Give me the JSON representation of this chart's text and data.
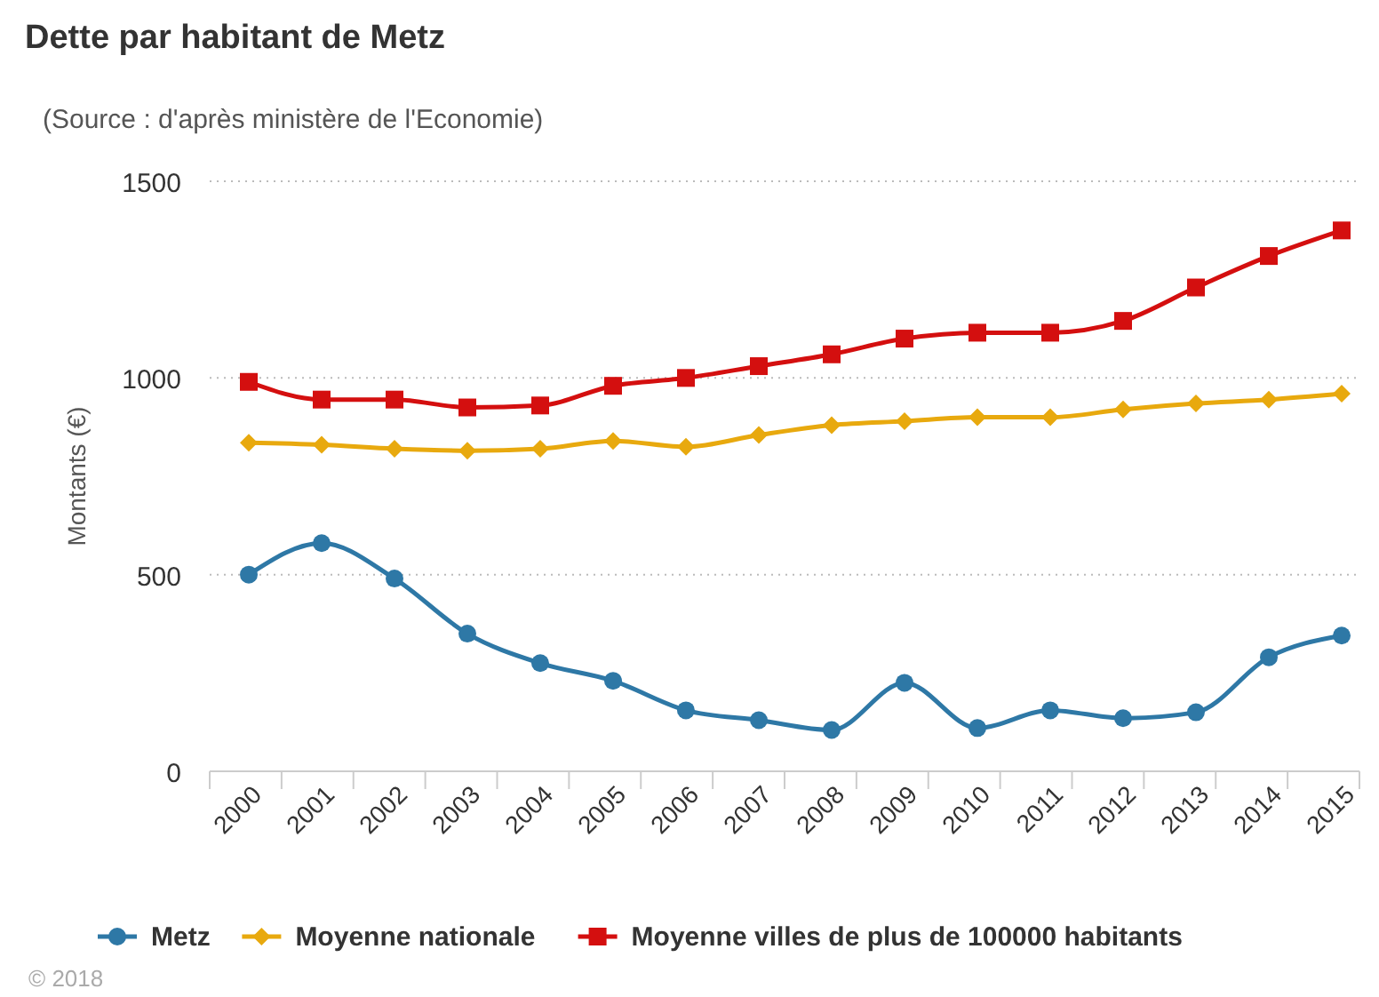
{
  "chart_data": {
    "type": "line",
    "title": "Dette par habitant de Metz",
    "subtitle": "(Source : d'après ministère de l'Economie)",
    "ylabel": "Montants (€)",
    "annotations": [
      "© 2018"
    ],
    "categories": [
      "2000",
      "2001",
      "2002",
      "2003",
      "2004",
      "2005",
      "2006",
      "2007",
      "2008",
      "2009",
      "2010",
      "2011",
      "2012",
      "2013",
      "2014",
      "2015"
    ],
    "ylim": [
      0,
      1500
    ],
    "yticks": [
      0,
      500,
      1000,
      1500
    ],
    "grid": "y",
    "legend": "bottom",
    "series": [
      {
        "name": "Metz",
        "color": "#2e78a6",
        "marker": "circle",
        "values": [
          500,
          580,
          490,
          350,
          275,
          230,
          155,
          130,
          105,
          225,
          110,
          155,
          135,
          150,
          290,
          345
        ]
      },
      {
        "name": "Moyenne nationale",
        "color": "#e8a90e",
        "marker": "diamond",
        "values": [
          835,
          830,
          820,
          815,
          820,
          840,
          825,
          855,
          880,
          890,
          900,
          900,
          920,
          935,
          945,
          960
        ]
      },
      {
        "name": "Moyenne villes de plus de 100000 habitants",
        "color": "#d40f0f",
        "marker": "square",
        "values": [
          990,
          945,
          945,
          925,
          930,
          980,
          1000,
          1030,
          1060,
          1100,
          1115,
          1115,
          1145,
          1230,
          1310,
          1375
        ]
      }
    ]
  }
}
